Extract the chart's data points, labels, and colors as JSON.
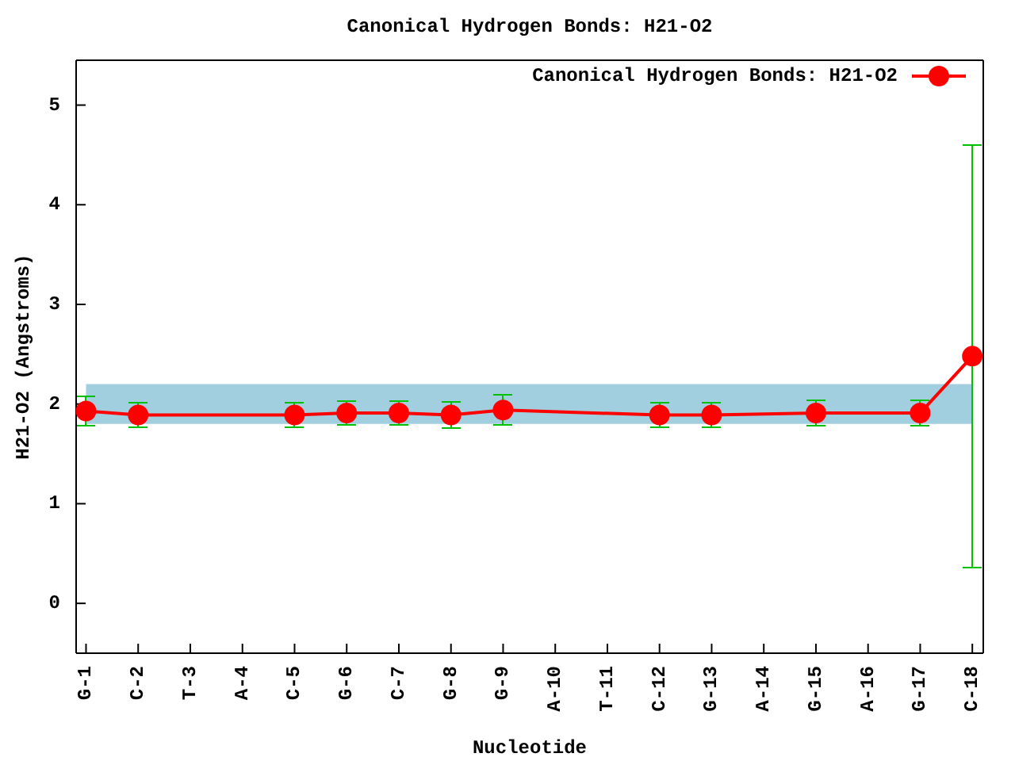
{
  "chart_data": {
    "type": "line",
    "title": "Canonical Hydrogen Bonds: H21-O2",
    "xlabel": "Nucleotide",
    "ylabel": "H21-O2 (Angstroms)",
    "categories": [
      "G-1",
      "C-2",
      "T-3",
      "A-4",
      "C-5",
      "G-6",
      "C-7",
      "G-8",
      "G-9",
      "A-10",
      "T-11",
      "C-12",
      "G-13",
      "A-14",
      "G-15",
      "A-16",
      "G-17",
      "C-18"
    ],
    "series": [
      {
        "name": "Canonical Hydrogen Bonds: H21-O2",
        "color": "#ff0000",
        "values": [
          1.93,
          1.89,
          null,
          null,
          1.89,
          1.91,
          1.91,
          1.89,
          1.94,
          null,
          null,
          1.89,
          1.89,
          null,
          1.91,
          null,
          1.91,
          2.48
        ],
        "errors": [
          0.15,
          0.12,
          null,
          null,
          0.12,
          0.12,
          0.12,
          0.13,
          0.15,
          null,
          null,
          0.12,
          0.12,
          null,
          0.13,
          null,
          0.13,
          2.12
        ]
      }
    ],
    "ylim": [
      -0.5,
      5.45
    ],
    "yticks": [
      0,
      1,
      2,
      3,
      4,
      5
    ],
    "bands": [
      {
        "axis": "y",
        "from": 1.8,
        "to": 2.2,
        "color": "#a1cfdf"
      }
    ],
    "legend": "top right",
    "marker": "circle",
    "line_style": "solid"
  }
}
